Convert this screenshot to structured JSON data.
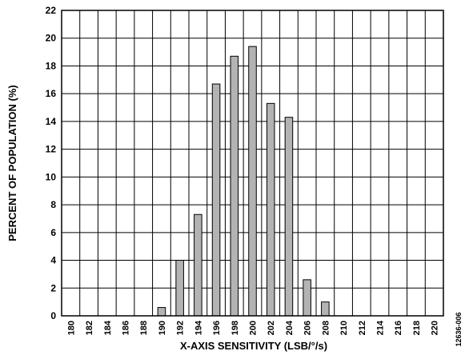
{
  "chart_data": {
    "type": "bar",
    "xlabel": "X-AXIS SENSITIVITY (LSB/°/s)",
    "ylabel": "PERCENT OF POPULATION (%)",
    "ylim": [
      0,
      22
    ],
    "y_ticks": [
      "0",
      "2",
      "4",
      "6",
      "8",
      "10",
      "12",
      "14",
      "16",
      "18",
      "20",
      "22"
    ],
    "categories": [
      "180",
      "182",
      "184",
      "186",
      "188",
      "190",
      "192",
      "194",
      "196",
      "198",
      "200",
      "202",
      "204",
      "206",
      "208",
      "210",
      "212",
      "214",
      "216",
      "218",
      "220"
    ],
    "series": [
      {
        "values": [
          {
            "x": 190,
            "y": 0.6
          },
          {
            "x": 192,
            "y": 4.0
          },
          {
            "x": 194,
            "y": 7.3
          },
          {
            "x": 196,
            "y": 16.7
          },
          {
            "x": 198,
            "y": 18.7
          },
          {
            "x": 200,
            "y": 19.4
          },
          {
            "x": 202,
            "y": 15.3
          },
          {
            "x": 204,
            "y": 14.3
          },
          {
            "x": 206,
            "y": 2.6
          },
          {
            "x": 208,
            "y": 1.0
          }
        ]
      }
    ],
    "grid": true,
    "bar_color": "#b3b3b3"
  },
  "figure_code": "12636-006"
}
